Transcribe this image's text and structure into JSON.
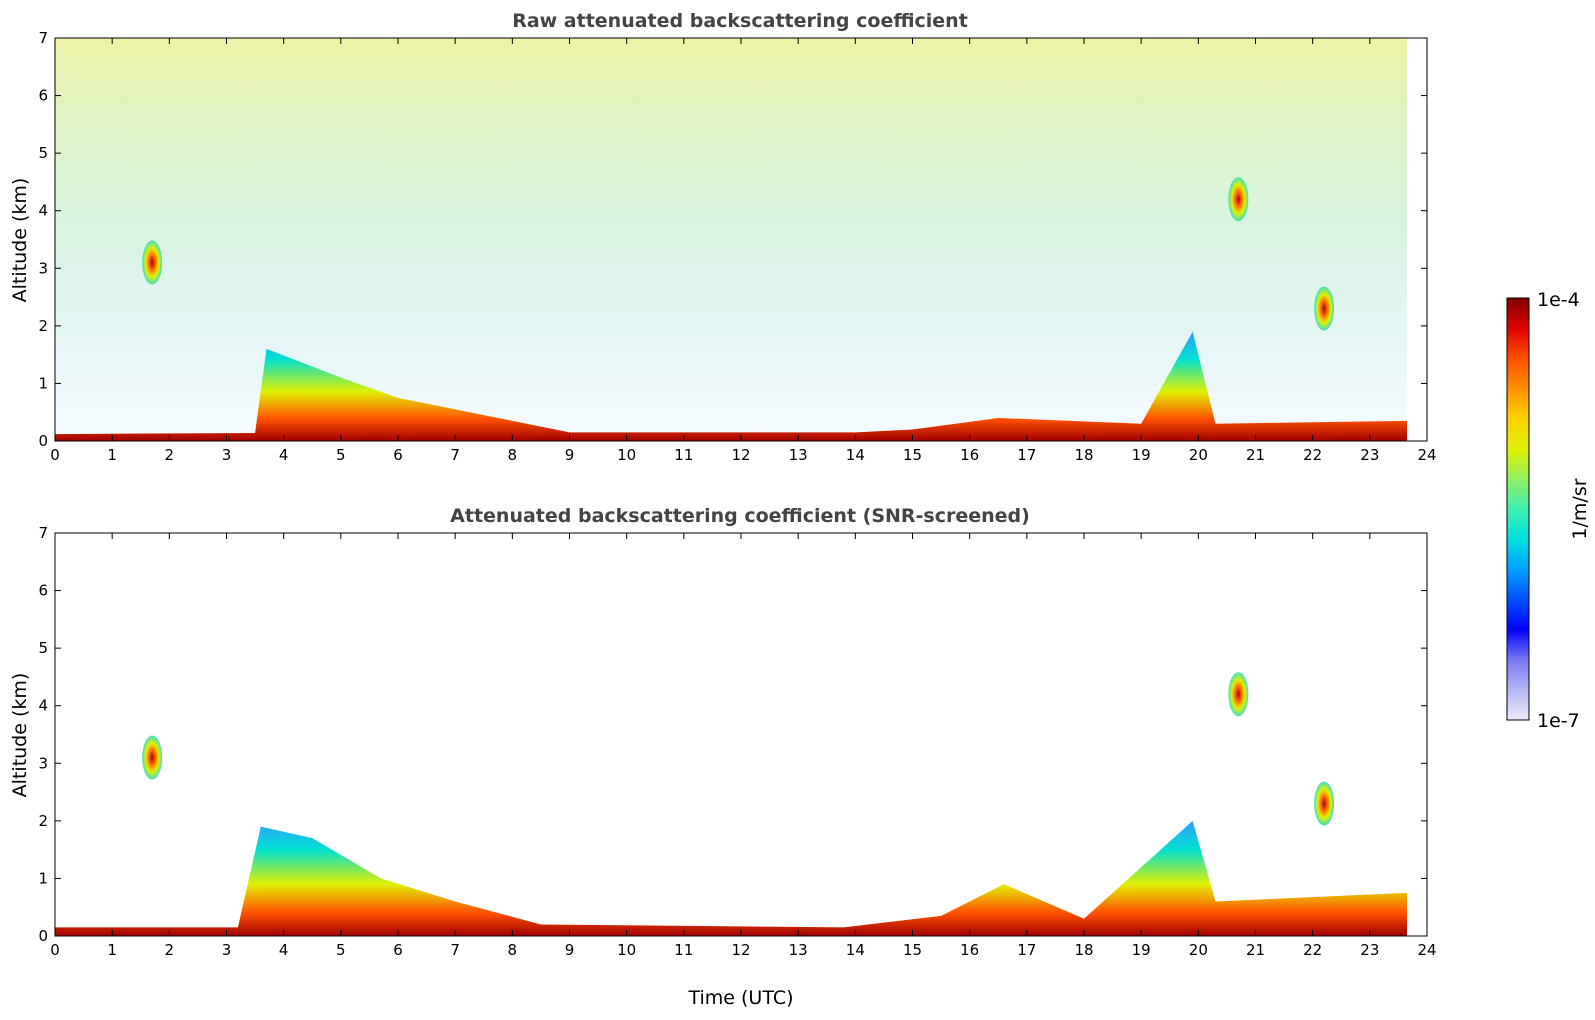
{
  "chart_data": [
    {
      "type": "heatmap",
      "title": "Raw attenuated backscattering coefficient",
      "xlabel": "",
      "ylabel": "Altitude (km)",
      "xlim": [
        0,
        24
      ],
      "ylim": [
        0,
        7
      ],
      "x_ticks": [
        "0",
        "1",
        "2",
        "3",
        "4",
        "5",
        "6",
        "7",
        "8",
        "9",
        "10",
        "11",
        "12",
        "13",
        "14",
        "15",
        "16",
        "17",
        "18",
        "19",
        "20",
        "21",
        "22",
        "23",
        "24"
      ],
      "y_ticks": [
        "0",
        "1",
        "2",
        "3",
        "4",
        "5",
        "6",
        "7"
      ],
      "data_end_hour": 23.65,
      "surface_layer": [
        {
          "t": 0,
          "top": 0.12
        },
        {
          "t": 3.5,
          "top": 0.14
        },
        {
          "t": 3.7,
          "top": 1.6
        },
        {
          "t": 5,
          "top": 1.1
        },
        {
          "t": 6,
          "top": 0.75
        },
        {
          "t": 7.5,
          "top": 0.45
        },
        {
          "t": 9,
          "top": 0.15
        },
        {
          "t": 14,
          "top": 0.15
        },
        {
          "t": 15,
          "top": 0.2
        },
        {
          "t": 16.5,
          "top": 0.4
        },
        {
          "t": 19,
          "top": 0.3
        },
        {
          "t": 19.9,
          "top": 1.9
        },
        {
          "t": 20.3,
          "top": 0.3
        },
        {
          "t": 23.65,
          "top": 0.35
        }
      ],
      "cloud_features": [
        {
          "t": 1.7,
          "alt": 3.1
        },
        {
          "t": 20.7,
          "alt": 4.2
        },
        {
          "t": 22.2,
          "alt": 2.3
        }
      ]
    },
    {
      "type": "heatmap",
      "title": "Attenuated backscattering coefficient (SNR-screened)",
      "xlabel": "Time (UTC)",
      "ylabel": "Altitude (km)",
      "xlim": [
        0,
        24
      ],
      "ylim": [
        0,
        7
      ],
      "x_ticks": [
        "0",
        "1",
        "2",
        "3",
        "4",
        "5",
        "6",
        "7",
        "8",
        "9",
        "10",
        "11",
        "12",
        "13",
        "14",
        "15",
        "16",
        "17",
        "18",
        "19",
        "20",
        "21",
        "22",
        "23",
        "24"
      ],
      "y_ticks": [
        "0",
        "1",
        "2",
        "3",
        "4",
        "5",
        "6",
        "7"
      ],
      "data_end_hour": 23.65,
      "surface_layer": [
        {
          "t": 0,
          "top": 0.15
        },
        {
          "t": 3.2,
          "top": 0.15
        },
        {
          "t": 3.6,
          "top": 1.9
        },
        {
          "t": 4.5,
          "top": 1.7
        },
        {
          "t": 5.7,
          "top": 1.0
        },
        {
          "t": 7,
          "top": 0.6
        },
        {
          "t": 8.5,
          "top": 0.2
        },
        {
          "t": 13.8,
          "top": 0.15
        },
        {
          "t": 15.5,
          "top": 0.35
        },
        {
          "t": 16.6,
          "top": 0.9
        },
        {
          "t": 18,
          "top": 0.3
        },
        {
          "t": 19.9,
          "top": 2.0
        },
        {
          "t": 20.3,
          "top": 0.6
        },
        {
          "t": 23.65,
          "top": 0.75
        }
      ],
      "cloud_features": [
        {
          "t": 1.7,
          "alt": 3.1
        },
        {
          "t": 20.7,
          "alt": 4.2
        },
        {
          "t": 22.2,
          "alt": 2.3
        }
      ]
    }
  ],
  "colorbar": {
    "max_label": "1e-4",
    "min_label": "1e-7",
    "unit_label": "1/m/sr",
    "colors": [
      "#ececfb",
      "#b4b4f4",
      "#7878f4",
      "#0000ff",
      "#0050ff",
      "#00a0ff",
      "#00e0e0",
      "#40f0b0",
      "#90f060",
      "#e0f000",
      "#ffd000",
      "#ff9000",
      "#ff5000",
      "#e00000",
      "#800000"
    ]
  }
}
